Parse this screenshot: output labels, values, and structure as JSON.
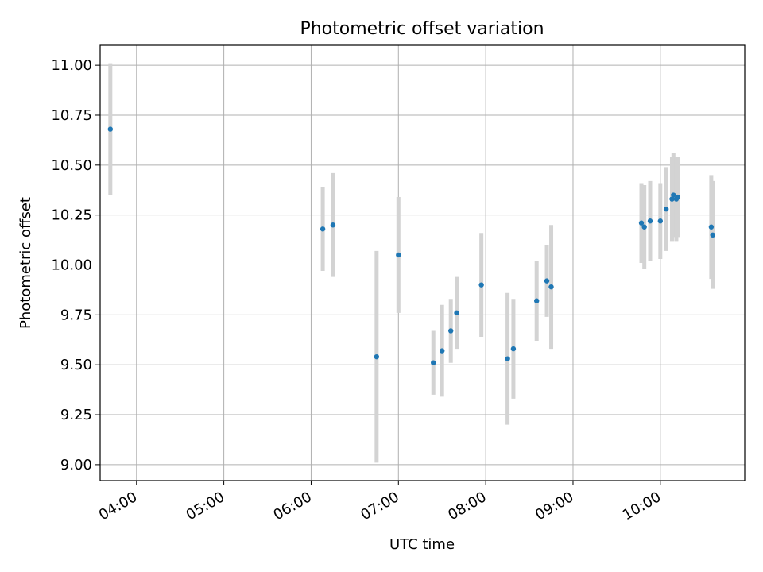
{
  "chart_data": {
    "type": "scatter",
    "title": "Photometric offset variation",
    "xlabel": "UTC time",
    "ylabel": "Photometric offset",
    "xlim": [
      "03:35",
      "10:58"
    ],
    "ylim": [
      8.92,
      11.1
    ],
    "x_ticks": [
      "04:00",
      "05:00",
      "06:00",
      "07:00",
      "08:00",
      "09:00",
      "10:00"
    ],
    "y_ticks": [
      "9.00",
      "9.25",
      "9.50",
      "9.75",
      "10.00",
      "10.25",
      "10.50",
      "10.75",
      "11.00"
    ],
    "grid": true,
    "marker_color": "#1f77b4",
    "errorbar_color": "#d3d3d3",
    "points": [
      {
        "x": "03:42",
        "y": 10.68,
        "err": 0.33
      },
      {
        "x": "06:08",
        "y": 10.18,
        "err": 0.21
      },
      {
        "x": "06:15",
        "y": 10.2,
        "err": 0.26
      },
      {
        "x": "06:45",
        "y": 9.54,
        "err": 0.53
      },
      {
        "x": "07:00",
        "y": 10.05,
        "err": 0.29
      },
      {
        "x": "07:24",
        "y": 9.51,
        "err": 0.16
      },
      {
        "x": "07:30",
        "y": 9.57,
        "err": 0.23
      },
      {
        "x": "07:36",
        "y": 9.67,
        "err": 0.16
      },
      {
        "x": "07:40",
        "y": 9.76,
        "err": 0.18
      },
      {
        "x": "07:57",
        "y": 9.9,
        "err": 0.26
      },
      {
        "x": "08:15",
        "y": 9.53,
        "err": 0.33
      },
      {
        "x": "08:19",
        "y": 9.58,
        "err": 0.25
      },
      {
        "x": "08:35",
        "y": 9.82,
        "err": 0.2
      },
      {
        "x": "08:42",
        "y": 9.92,
        "err": 0.18
      },
      {
        "x": "08:45",
        "y": 9.89,
        "err": 0.31
      },
      {
        "x": "09:47",
        "y": 10.21,
        "err": 0.2
      },
      {
        "x": "09:49",
        "y": 10.19,
        "err": 0.21
      },
      {
        "x": "09:53",
        "y": 10.22,
        "err": 0.2
      },
      {
        "x": "10:00",
        "y": 10.22,
        "err": 0.19
      },
      {
        "x": "10:04",
        "y": 10.28,
        "err": 0.21
      },
      {
        "x": "10:08",
        "y": 10.33,
        "err": 0.21
      },
      {
        "x": "10:09",
        "y": 10.35,
        "err": 0.21
      },
      {
        "x": "10:11",
        "y": 10.33,
        "err": 0.21
      },
      {
        "x": "10:12",
        "y": 10.34,
        "err": 0.2
      },
      {
        "x": "10:35",
        "y": 10.19,
        "err": 0.26
      },
      {
        "x": "10:36",
        "y": 10.15,
        "err": 0.27
      }
    ]
  }
}
